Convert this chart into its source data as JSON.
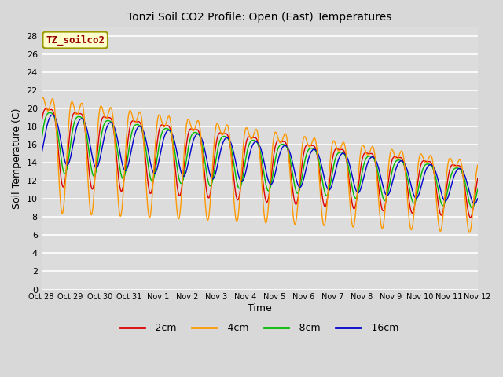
{
  "title": "Tonzi Soil CO2 Profile: Open (East) Temperatures",
  "xlabel": "Time",
  "ylabel": "Soil Temperature (C)",
  "legend_label": "TZ_soilco2",
  "series_labels": [
    "-2cm",
    "-4cm",
    "-8cm",
    "-16cm"
  ],
  "series_colors": [
    "#dd0000",
    "#ff9900",
    "#00bb00",
    "#0000cc"
  ],
  "ylim": [
    0,
    29
  ],
  "yticks": [
    0,
    2,
    4,
    6,
    8,
    10,
    12,
    14,
    16,
    18,
    20,
    22,
    24,
    26,
    28
  ],
  "bg_color": "#d8d8d8",
  "plot_bg_color": "#dcdcdc",
  "grid_color": "#ffffff",
  "num_days": 15,
  "xtick_labels": [
    "Oct 28",
    "Oct 29",
    "Oct 30",
    "Oct 31",
    "Nov 1",
    "Nov 2",
    "Nov 3",
    "Nov 4",
    "Nov 5",
    "Nov 6",
    "Nov 7",
    "Nov 8",
    "Nov 9",
    "Nov 10",
    "Nov 11",
    "Nov 12"
  ],
  "num_points": 1500
}
